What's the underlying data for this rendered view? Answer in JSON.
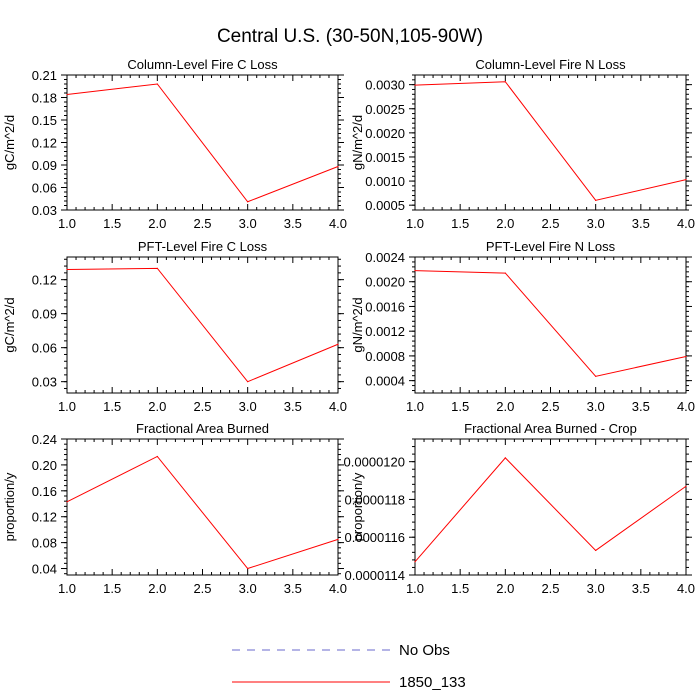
{
  "title": "Central U.S. (30-50N,105-90W)",
  "legend": {
    "items": [
      {
        "label": "No Obs",
        "color": "#6a6acd",
        "dash": true
      },
      {
        "label": "1850_133",
        "color": "#ff0000",
        "dash": false
      }
    ]
  },
  "chart_data": [
    {
      "type": "line",
      "title": "Column-Level Fire C Loss",
      "ylabel": "gC/m^2/d",
      "xlim": [
        1.0,
        4.0
      ],
      "ylim": [
        0.03,
        0.21
      ],
      "xticks": [
        "1.0",
        "1.5",
        "2.0",
        "2.5",
        "3.0",
        "3.5",
        "4.0"
      ],
      "yticks": [
        "0.03",
        "0.06",
        "0.09",
        "0.12",
        "0.15",
        "0.18",
        "0.21"
      ],
      "series": [
        {
          "name": "1850_133",
          "color": "#ff0000",
          "x": [
            1,
            2,
            3,
            4
          ],
          "values": [
            0.184,
            0.198,
            0.041,
            0.088
          ]
        }
      ]
    },
    {
      "type": "line",
      "title": "Column-Level Fire N Loss",
      "ylabel": "gN/m^2/d",
      "xlim": [
        1.0,
        4.0
      ],
      "ylim": [
        0.0004,
        0.0032
      ],
      "xticks": [
        "1.0",
        "1.5",
        "2.0",
        "2.5",
        "3.0",
        "3.5",
        "4.0"
      ],
      "yticks": [
        "0.0005",
        "0.0010",
        "0.0015",
        "0.0020",
        "0.0025",
        "0.0030"
      ],
      "series": [
        {
          "name": "1850_133",
          "color": "#ff0000",
          "x": [
            1,
            2,
            3,
            4
          ],
          "values": [
            0.00299,
            0.00306,
            0.0006,
            0.00103
          ]
        }
      ]
    },
    {
      "type": "line",
      "title": "PFT-Level Fire C Loss",
      "ylabel": "gC/m^2/d",
      "xlim": [
        1.0,
        4.0
      ],
      "ylim": [
        0.02,
        0.14
      ],
      "xticks": [
        "1.0",
        "1.5",
        "2.0",
        "2.5",
        "3.0",
        "3.5",
        "4.0"
      ],
      "yticks": [
        "0.03",
        "0.06",
        "0.09",
        "0.12"
      ],
      "series": [
        {
          "name": "1850_133",
          "color": "#ff0000",
          "x": [
            1,
            2,
            3,
            4
          ],
          "values": [
            0.129,
            0.13,
            0.03,
            0.063
          ]
        }
      ]
    },
    {
      "type": "line",
      "title": "PFT-Level Fire N Loss",
      "ylabel": "gN/m^2/d",
      "xlim": [
        1.0,
        4.0
      ],
      "ylim": [
        0.0002,
        0.0024
      ],
      "xticks": [
        "1.0",
        "1.5",
        "2.0",
        "2.5",
        "3.0",
        "3.5",
        "4.0"
      ],
      "yticks": [
        "0.0004",
        "0.0008",
        "0.0012",
        "0.0016",
        "0.0020",
        "0.0024"
      ],
      "series": [
        {
          "name": "1850_133",
          "color": "#ff0000",
          "x": [
            1,
            2,
            3,
            4
          ],
          "values": [
            0.00218,
            0.00214,
            0.00047,
            0.00079
          ]
        }
      ]
    },
    {
      "type": "line",
      "title": "Fractional Area Burned",
      "ylabel": "proportion/y",
      "xlim": [
        1.0,
        4.0
      ],
      "ylim": [
        0.03,
        0.24
      ],
      "xticks": [
        "1.0",
        "1.5",
        "2.0",
        "2.5",
        "3.0",
        "3.5",
        "4.0"
      ],
      "yticks": [
        "0.04",
        "0.08",
        "0.12",
        "0.16",
        "0.20",
        "0.24"
      ],
      "series": [
        {
          "name": "1850_133",
          "color": "#ff0000",
          "x": [
            1,
            2,
            3,
            4
          ],
          "values": [
            0.143,
            0.213,
            0.04,
            0.085
          ]
        }
      ]
    },
    {
      "type": "line",
      "title": "Fractional Area Burned - Crop",
      "ylabel": "proportion/y",
      "xlim": [
        1.0,
        4.0
      ],
      "ylim": [
        1.14e-05,
        1.212e-05
      ],
      "xticks": [
        "1.0",
        "1.5",
        "2.0",
        "2.5",
        "3.0",
        "3.5",
        "4.0"
      ],
      "yticks": [
        "0.0000114",
        "0.0000116",
        "0.0000118",
        "0.0000120"
      ],
      "series": [
        {
          "name": "1850_133",
          "color": "#ff0000",
          "x": [
            1,
            2,
            3,
            4
          ],
          "values": [
            1.147e-05,
            1.202e-05,
            1.153e-05,
            1.187e-05
          ]
        }
      ]
    }
  ]
}
